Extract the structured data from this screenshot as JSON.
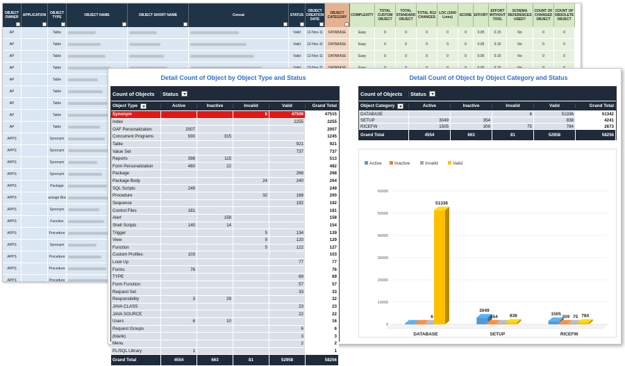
{
  "background_sheet": {
    "headers": [
      {
        "label": "OBJECT OWNER",
        "w": 27,
        "style": "dark"
      },
      {
        "label": "APPLICATION",
        "w": 38,
        "style": "dark"
      },
      {
        "label": "OBJECT TYPE",
        "w": 27,
        "style": "dark"
      },
      {
        "label": "OBJECT NAME",
        "w": 88,
        "style": "dark"
      },
      {
        "label": "OBJECT SHORT NAME",
        "w": 88,
        "style": "dark"
      },
      {
        "label": "Concat",
        "w": 144,
        "style": "dark"
      },
      {
        "label": "STATUS",
        "w": 24,
        "style": "dark"
      },
      {
        "label": "OBJECT CREATION DATE",
        "w": 28,
        "style": "dark"
      },
      {
        "label": "OBJECT CATEGORY",
        "w": 36,
        "style": "orange"
      },
      {
        "label": "COMPLEXITY",
        "w": 36,
        "style": "green"
      },
      {
        "label": "TOTAL CUSTOM OBJECT",
        "w": 30,
        "style": "green"
      },
      {
        "label": "TOTAL STANDARD OBJECT",
        "w": 30,
        "style": "green"
      },
      {
        "label": "TOTAL R12 CHANGES",
        "w": 30,
        "style": "green"
      },
      {
        "label": "LOC (1000 Lines)",
        "w": 30,
        "style": "green"
      },
      {
        "label": "SCORE",
        "w": 22,
        "style": "green"
      },
      {
        "label": "EFFORT",
        "w": 22,
        "style": "green"
      },
      {
        "label": "EFFORT WITHOUT TOOL",
        "w": 26,
        "style": "green"
      },
      {
        "label": "SCHEMA REFERENCES USED?",
        "w": 38,
        "style": "green"
      },
      {
        "label": "COUNT OF CHANGED OBJECT",
        "w": 30,
        "style": "green"
      },
      {
        "label": "COUNT OF OBSOLETE OBJECT",
        "w": 30,
        "style": "green"
      }
    ],
    "rows": [
      {
        "owner": "AP",
        "type": "Table",
        "status": "Valid",
        "date": "12-Nov-11",
        "category": "DATABASE",
        "complexity": "Easy",
        "vals": [
          "0",
          "0",
          "0",
          "0",
          "0",
          "0.05",
          "0.15",
          "No",
          "0",
          "0"
        ]
      },
      {
        "owner": "AP",
        "type": "Table",
        "status": "Valid",
        "date": "12-Nov-11",
        "category": "DATABASE",
        "complexity": "Easy",
        "vals": [
          "0",
          "0",
          "0",
          "0",
          "0",
          "0.05",
          "0.15",
          "No",
          "0",
          "0"
        ]
      },
      {
        "owner": "AP",
        "type": "Table",
        "status": "Valid",
        "date": "12-Nov-11",
        "category": "DATABASE",
        "complexity": "Easy",
        "vals": [
          "0",
          "0",
          "0",
          "0",
          "0",
          "0.05",
          "0.15",
          "No",
          "0",
          "0"
        ]
      },
      {
        "owner": "AP",
        "type": "Table",
        "status": "Valid",
        "date": "12-Nov-11",
        "category": "DATABASE",
        "complexity": "Easy",
        "vals": [
          "0",
          "0",
          "0",
          "0",
          "0",
          "0.05",
          "0.15",
          "No",
          "0",
          "0"
        ]
      },
      {
        "owner": "AP",
        "type": "Table"
      },
      {
        "owner": "AP",
        "type": "Table"
      },
      {
        "owner": "AP",
        "type": "Table"
      },
      {
        "owner": "AP",
        "type": "Table"
      },
      {
        "owner": "AP",
        "type": "Table"
      },
      {
        "owner": "APPS",
        "type": "Synonym"
      },
      {
        "owner": "APPS",
        "type": "Synonym"
      },
      {
        "owner": "APPS",
        "type": "Synonym"
      },
      {
        "owner": "APPS",
        "type": "Synonym"
      },
      {
        "owner": "APPS",
        "type": "Package"
      },
      {
        "owner": "APPS",
        "type": "Package Body"
      },
      {
        "owner": "APPS",
        "type": "Synonym"
      },
      {
        "owner": "APPS",
        "type": "Function"
      },
      {
        "owner": "APPS",
        "type": "Procedure"
      },
      {
        "owner": "APPS",
        "type": "Synonym"
      },
      {
        "owner": "APPS",
        "type": "Procedure"
      },
      {
        "owner": "APPS",
        "type": "Procedure"
      },
      {
        "owner": "APPS",
        "type": "Procedure"
      }
    ]
  },
  "pivot1": {
    "title": "Detail Count of Object by Object Type and Status",
    "measure_label": "Count of Objects",
    "status_label": "Status",
    "row_label": "Object Type",
    "columns": [
      "Active",
      "Inactive",
      "Invalid",
      "Valid",
      "Grand Total"
    ],
    "rows": [
      {
        "label": "Synonym",
        "vals": [
          "",
          "",
          "6",
          "47509",
          "47515"
        ],
        "highlight": true
      },
      {
        "label": "Index",
        "vals": [
          "",
          "",
          "",
          "2255",
          "2255"
        ]
      },
      {
        "label": "OAF Personalization",
        "vals": [
          "2007",
          "",
          "",
          "",
          "2007"
        ]
      },
      {
        "label": "Concurrent Programs",
        "vals": [
          "930",
          "315",
          "",
          "",
          "1245"
        ]
      },
      {
        "label": "Table",
        "vals": [
          "",
          "",
          "",
          "921",
          "921"
        ]
      },
      {
        "label": "Value Set",
        "vals": [
          "",
          "",
          "",
          "737",
          "737"
        ]
      },
      {
        "label": "Reports",
        "vals": [
          "398",
          "115",
          "",
          "",
          "513"
        ]
      },
      {
        "label": "Form Personalization",
        "vals": [
          "460",
          "22",
          "",
          "",
          "482"
        ]
      },
      {
        "label": "Package",
        "vals": [
          "",
          "",
          "",
          "268",
          "268"
        ]
      },
      {
        "label": "Package Body",
        "vals": [
          "",
          "",
          "24",
          "240",
          "264"
        ]
      },
      {
        "label": "SQL Scripts",
        "vals": [
          "249",
          "",
          "",
          "",
          "249"
        ]
      },
      {
        "label": "Procedure",
        "vals": [
          "",
          "",
          "32",
          "168",
          "200"
        ]
      },
      {
        "label": "Sequence",
        "vals": [
          "",
          "",
          "",
          "192",
          "192"
        ]
      },
      {
        "label": "Control Files",
        "vals": [
          "181",
          "",
          "",
          "",
          "181"
        ]
      },
      {
        "label": "Alert",
        "vals": [
          "",
          "158",
          "",
          "",
          "158"
        ]
      },
      {
        "label": "Shell Scripts",
        "vals": [
          "140",
          "14",
          "",
          "",
          "154"
        ]
      },
      {
        "label": "Trigger",
        "vals": [
          "",
          "",
          "5",
          "134",
          "139"
        ]
      },
      {
        "label": "View",
        "vals": [
          "",
          "",
          "9",
          "120",
          "129"
        ]
      },
      {
        "label": "Function",
        "vals": [
          "",
          "",
          "5",
          "122",
          "127"
        ]
      },
      {
        "label": "Custom Profiles",
        "vals": [
          "103",
          "",
          "",
          "",
          "103"
        ]
      },
      {
        "label": "Look Up",
        "vals": [
          "",
          "",
          "",
          "77",
          "77"
        ]
      },
      {
        "label": "Forms",
        "vals": [
          "76",
          "",
          "",
          "",
          "76"
        ]
      },
      {
        "label": "TYPE",
        "vals": [
          "",
          "",
          "",
          "69",
          "69"
        ]
      },
      {
        "label": "Form Function",
        "vals": [
          "",
          "",
          "",
          "57",
          "57"
        ]
      },
      {
        "label": "Request Set",
        "vals": [
          "",
          "",
          "",
          "33",
          "33"
        ]
      },
      {
        "label": "Responsibility",
        "vals": [
          "3",
          "29",
          "",
          "",
          "32"
        ]
      },
      {
        "label": "JAVA CLASS",
        "vals": [
          "",
          "",
          "",
          "23",
          "23"
        ]
      },
      {
        "label": "JAVA SOURCE",
        "vals": [
          "",
          "",
          "",
          "22",
          "22"
        ]
      },
      {
        "label": "Users",
        "vals": [
          "6",
          "10",
          "",
          "",
          "16"
        ]
      },
      {
        "label": "Request Groups",
        "vals": [
          "",
          "",
          "",
          "6",
          "6"
        ]
      },
      {
        "label": "(blank)",
        "vals": [
          "",
          "",
          "",
          "3",
          "3"
        ]
      },
      {
        "label": "Menu",
        "vals": [
          "",
          "",
          "",
          "2",
          "2"
        ]
      },
      {
        "label": "PL/SQL Library",
        "vals": [
          "1",
          "",
          "",
          "",
          "1"
        ]
      }
    ],
    "grand_total": {
      "label": "Grand Total",
      "vals": [
        "4554",
        "663",
        "81",
        "52958",
        "58256"
      ]
    }
  },
  "pivot2": {
    "title": "Detail Count of Object by Object Category and Status",
    "measure_label": "Count of Objects",
    "status_label": "Status",
    "row_label": "Object Category",
    "columns": [
      "Active",
      "Inactive",
      "Invalid",
      "Valid",
      "Grand Total"
    ],
    "rows": [
      {
        "label": "DATABASE",
        "vals": [
          "",
          "",
          "6",
          "51336",
          "51342"
        ]
      },
      {
        "label": "SETUP",
        "vals": [
          "3049",
          "354",
          "",
          "838",
          "4241"
        ]
      },
      {
        "label": "RICEFW",
        "vals": [
          "1505",
          "309",
          "75",
          "784",
          "2673"
        ]
      }
    ],
    "grand_total": {
      "label": "Grand Total",
      "vals": [
        "4554",
        "663",
        "81",
        "52958",
        "58256"
      ]
    }
  },
  "chart_data": {
    "type": "bar",
    "title": "",
    "categories": [
      "DATABASE",
      "SETUP",
      "RICEFW"
    ],
    "series": [
      {
        "name": "Active",
        "color": "#4f9bd9",
        "values": [
          0,
          3049,
          1505
        ]
      },
      {
        "name": "Inactive",
        "color": "#ed7d31",
        "values": [
          0,
          354,
          309
        ]
      },
      {
        "name": "Invalid",
        "color": "#a5a5a5",
        "values": [
          6,
          0,
          75
        ]
      },
      {
        "name": "Valid",
        "color": "#ffc000",
        "values": [
          51336,
          838,
          784
        ]
      }
    ],
    "data_labels": [
      [
        "",
        "3049",
        "1505"
      ],
      [
        "",
        "354",
        "309"
      ],
      [
        "6",
        "",
        "75"
      ],
      [
        "51336",
        "838",
        "784"
      ]
    ],
    "ylim": [
      0,
      60000
    ],
    "yticks": [
      "0",
      "10000",
      "20000",
      "30000",
      "40000",
      "50000",
      "60000"
    ],
    "legend": "top-left",
    "grid": true,
    "style": "3d"
  }
}
